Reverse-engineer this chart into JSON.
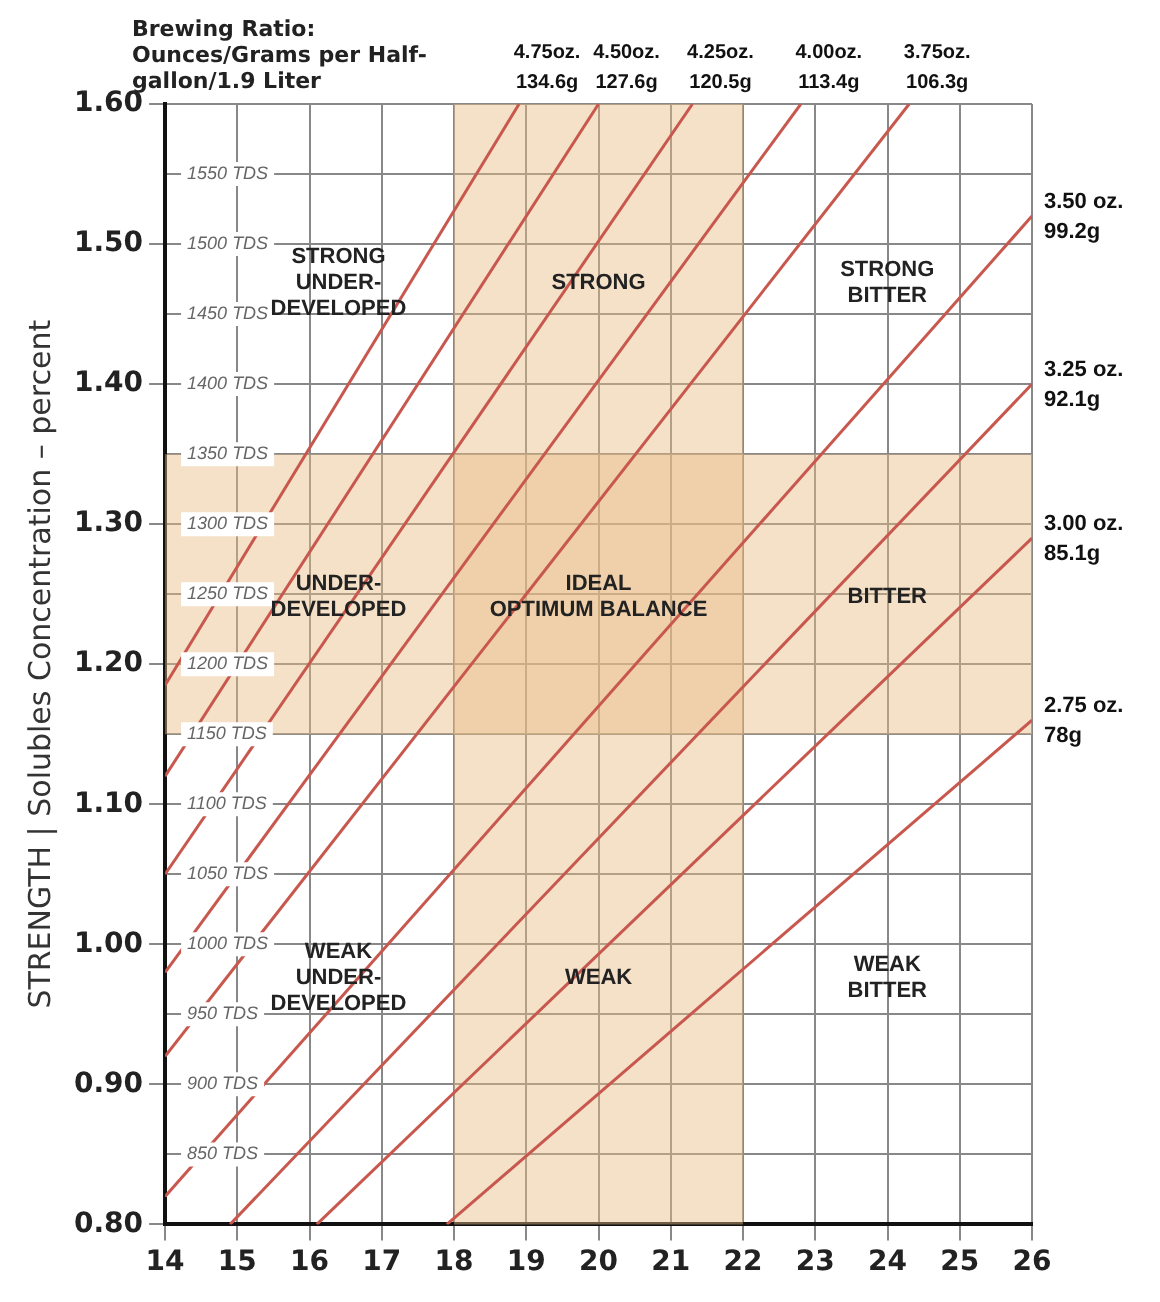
{
  "chart_data": {
    "type": "line",
    "legend_title": "Brewing Ratio: Ounces/Grams per Half-gallon/1.9 Liter",
    "ylabel": "STRENGTH | Solubles Concentration – percent",
    "series": [
      {
        "name": "4.75oz. 134.6g",
        "color": "#c8584e",
        "x": [
          14,
          18.9
        ],
        "values": [
          1.185,
          1.6
        ]
      },
      {
        "name": "4.50oz. 127.6g",
        "color": "#c8584e",
        "x": [
          14,
          20
        ],
        "values": [
          1.12,
          1.6
        ]
      },
      {
        "name": "4.25oz. 120.5g",
        "color": "#c8584e",
        "x": [
          14,
          21.3
        ],
        "values": [
          1.05,
          1.6
        ]
      },
      {
        "name": "4.00oz. 113.4g",
        "color": "#c8584e",
        "x": [
          14,
          22.8
        ],
        "values": [
          0.98,
          1.6
        ]
      },
      {
        "name": "3.75oz. 106.3g",
        "color": "#c8584e",
        "x": [
          14,
          24.3
        ],
        "values": [
          0.92,
          1.6
        ]
      },
      {
        "name": "3.50 oz. 99.2g",
        "color": "#c8584e",
        "x": [
          14,
          26
        ],
        "values": [
          0.82,
          1.52
        ]
      },
      {
        "name": "3.25 oz. 92.1g",
        "color": "#c8584e",
        "x": [
          14.9,
          26
        ],
        "values": [
          0.8,
          1.4
        ]
      },
      {
        "name": "3.00 oz. 85.1g",
        "color": "#c8584e",
        "x": [
          16.1,
          26
        ],
        "values": [
          0.8,
          1.29
        ]
      },
      {
        "name": "2.75 oz. 78g",
        "color": "#c8584e",
        "x": [
          17.9,
          26
        ],
        "values": [
          0.8,
          1.16
        ]
      }
    ],
    "xlim": [
      14,
      26
    ],
    "xticks": [
      14,
      15,
      16,
      17,
      18,
      19,
      20,
      21,
      22,
      23,
      24,
      25,
      26
    ],
    "ylim": [
      0.8,
      1.6
    ],
    "yticks": [
      {
        "value": 0.8,
        "label": "0.80"
      },
      {
        "value": 0.9,
        "label": "0.90"
      },
      {
        "value": 1.0,
        "label": "1.00"
      },
      {
        "value": 1.1,
        "label": "1.10"
      },
      {
        "value": 1.2,
        "label": "1.20"
      },
      {
        "value": 1.3,
        "label": "1.30"
      },
      {
        "value": 1.4,
        "label": "1.40"
      },
      {
        "value": 1.5,
        "label": "1.50"
      },
      {
        "value": 1.6,
        "label": "1.60"
      }
    ],
    "y2lim": [
      800,
      1600
    ],
    "y2ticks": [
      {
        "value": 850,
        "label": "850 TDS"
      },
      {
        "value": 900,
        "label": "900 TDS"
      },
      {
        "value": 950,
        "label": "950 TDS"
      },
      {
        "value": 1000,
        "label": "1000 TDS"
      },
      {
        "value": 1050,
        "label": "1050 TDS"
      },
      {
        "value": 1100,
        "label": "1100 TDS"
      },
      {
        "value": 1150,
        "label": "1150 TDS"
      },
      {
        "value": 1200,
        "label": "1200 TDS"
      },
      {
        "value": 1250,
        "label": "1250 TDS"
      },
      {
        "value": 1300,
        "label": "1300 TDS"
      },
      {
        "value": 1350,
        "label": "1350 TDS"
      },
      {
        "value": 1400,
        "label": "1400 TDS"
      },
      {
        "value": 1450,
        "label": "1450 TDS"
      },
      {
        "value": 1500,
        "label": "1500 TDS"
      },
      {
        "value": 1550,
        "label": "1550 TDS"
      }
    ],
    "bands": [
      {
        "axis": "x",
        "from": 18,
        "to": 22,
        "color": "#e8bd84"
      },
      {
        "axis": "y",
        "from": 1.15,
        "to": 1.35,
        "color": "#e8bd84"
      }
    ],
    "annotations": [
      "STRONG\nUNDER-\nDEVELOPED",
      "STRONG",
      "STRONG\nBITTER",
      "UNDER-\nDEVELOPED",
      "IDEAL\nOPTIMUM BALANCE",
      "BITTER",
      "WEAK\nUNDER-\nDEVELOPED",
      "WEAK",
      "WEAK\nBITTER"
    ],
    "grid": true,
    "legend": false,
    "marker": "none",
    "line_style": "solid"
  }
}
